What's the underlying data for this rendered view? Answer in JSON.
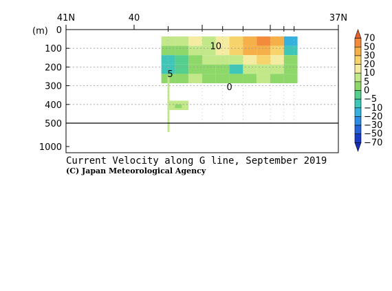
{
  "chart_data": {
    "type": "heatmap",
    "title": "Current Velocity along G line, September 2019",
    "credit": "(C) Japan Meteorological Agency",
    "ylabel": "(m)",
    "x_ticks": [
      {
        "value": 41,
        "label": "41N"
      },
      {
        "value": 40,
        "label": "40"
      },
      {
        "value": 39,
        "label": ""
      },
      {
        "value": 38,
        "label": ""
      },
      {
        "value": 37,
        "label": "37N"
      }
    ],
    "x_range": [
      41,
      37
    ],
    "station_lats": [
      39.5,
      39.0,
      38.7,
      38.4,
      38.0,
      37.8,
      37.65
    ],
    "depth_ticks_upper": [
      0,
      100,
      200,
      300,
      400,
      500
    ],
    "depth_ticks_lower": [
      1000
    ],
    "depth_range_upper": [
      0,
      500
    ],
    "depth_range_lower": [
      500,
      1000
    ],
    "contour_labels": [
      {
        "text": "10",
        "lat": 38.8,
        "depth": 60
      },
      {
        "text": "0",
        "lat": 38.6,
        "depth": 280
      },
      {
        "text": "5",
        "lat": 39.47,
        "depth": 210
      }
    ],
    "colorbar": {
      "levels": [
        70,
        50,
        30,
        20,
        10,
        5,
        0,
        -5,
        -10,
        -20,
        -30,
        -50,
        -70
      ],
      "colors": [
        "#e8602a",
        "#f28c3c",
        "#f5b04a",
        "#f7d46b",
        "#f4eca0",
        "#c2e88a",
        "#8ed86a",
        "#55cf8e",
        "#3ec6b8",
        "#36b0dd",
        "#2d8ce6",
        "#2563d8",
        "#1a3cc4",
        "#1a2fb8"
      ]
    },
    "value_grid": {
      "lats": [
        39.5,
        39.3,
        39.1,
        38.9,
        38.7,
        38.5,
        38.3,
        38.1,
        37.9,
        37.7
      ],
      "depths": [
        25,
        75,
        125,
        175,
        225
      ],
      "values": [
        [
          5,
          8,
          10,
          8,
          12,
          25,
          40,
          55,
          30,
          -20
        ],
        [
          0,
          3,
          5,
          6,
          10,
          20,
          35,
          45,
          20,
          -10
        ],
        [
          -8,
          -5,
          2,
          5,
          6,
          8,
          15,
          20,
          10,
          4
        ],
        [
          -10,
          -4,
          3,
          4,
          3,
          -6,
          5,
          8,
          5,
          3
        ],
        [
          3,
          4,
          6,
          3,
          2,
          4,
          4,
          5,
          4,
          3
        ]
      ]
    }
  }
}
